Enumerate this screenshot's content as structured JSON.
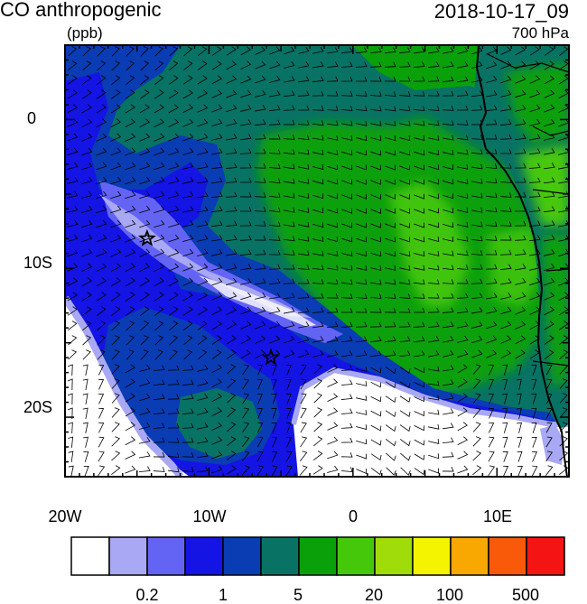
{
  "header": {
    "title": "CO anthropogenic",
    "timestamp": "2018-10-17_09",
    "units": "(ppb)",
    "level": "700 hPa"
  },
  "map": {
    "lon_range": [
      -20,
      15
    ],
    "lat_range": [
      -24,
      5
    ],
    "x_tick_labels": [
      "20W",
      "10W",
      "0",
      "10E"
    ],
    "y_tick_labels": [
      "0",
      "10S",
      "20S"
    ],
    "markers": [
      {
        "name": "star-marker",
        "lon": -14.3,
        "lat": -8.0
      },
      {
        "name": "star-marker",
        "lon": -5.7,
        "lat": -16.0
      }
    ],
    "overlay": "wind barbs"
  },
  "colorbar": {
    "colors": [
      "#ffffff",
      "#a8a8f4",
      "#6464f4",
      "#1414e4",
      "#0a3cb4",
      "#087264",
      "#0aa00a",
      "#46c80a",
      "#a0dc0a",
      "#f4f400",
      "#f8a800",
      "#f85a0a",
      "#f41414"
    ],
    "tick_labels": [
      "0.2",
      "1",
      "5",
      "20",
      "100",
      "500"
    ]
  }
}
